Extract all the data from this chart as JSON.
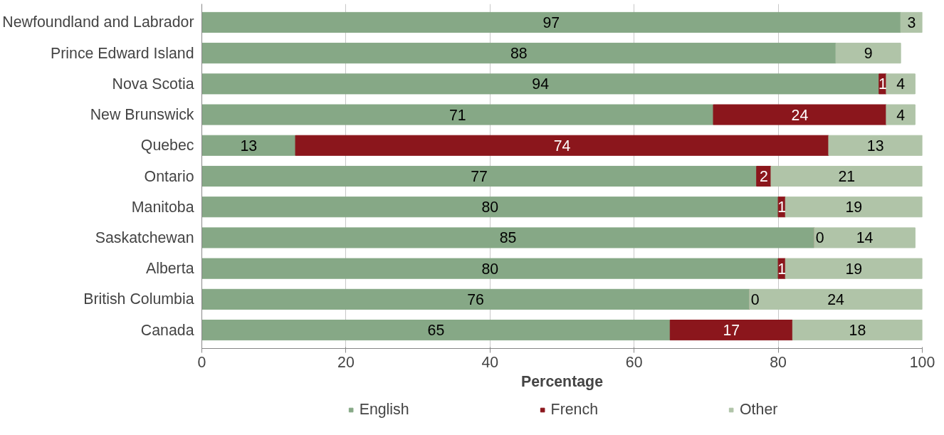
{
  "chart_data": {
    "type": "bar",
    "orientation": "horizontal",
    "stacked": true,
    "data_labels": true,
    "categories": [
      "Newfoundland and Labrador",
      "Prince Edward Island",
      "Nova Scotia",
      "New Brunswick",
      "Quebec",
      "Ontario",
      "Manitoba",
      "Saskatchewan",
      "Alberta",
      "British Columbia",
      "Canada"
    ],
    "series": [
      {
        "name": "English",
        "color": "#86a886",
        "values": [
          97,
          88,
          94,
          71,
          13,
          77,
          80,
          85,
          80,
          76,
          65
        ]
      },
      {
        "name": "French",
        "color": "#8b161c",
        "values": [
          null,
          null,
          1,
          24,
          74,
          2,
          1,
          0,
          1,
          0,
          17
        ]
      },
      {
        "name": "Other",
        "color": "#b0c4a8",
        "values": [
          3,
          9,
          4,
          4,
          13,
          21,
          19,
          14,
          19,
          24,
          18
        ]
      }
    ],
    "xlim": [
      0,
      100
    ],
    "xticks": [
      0,
      20,
      40,
      60,
      80,
      100
    ],
    "xlabel": "Percentage",
    "grid": "x",
    "legend": "bottom"
  }
}
